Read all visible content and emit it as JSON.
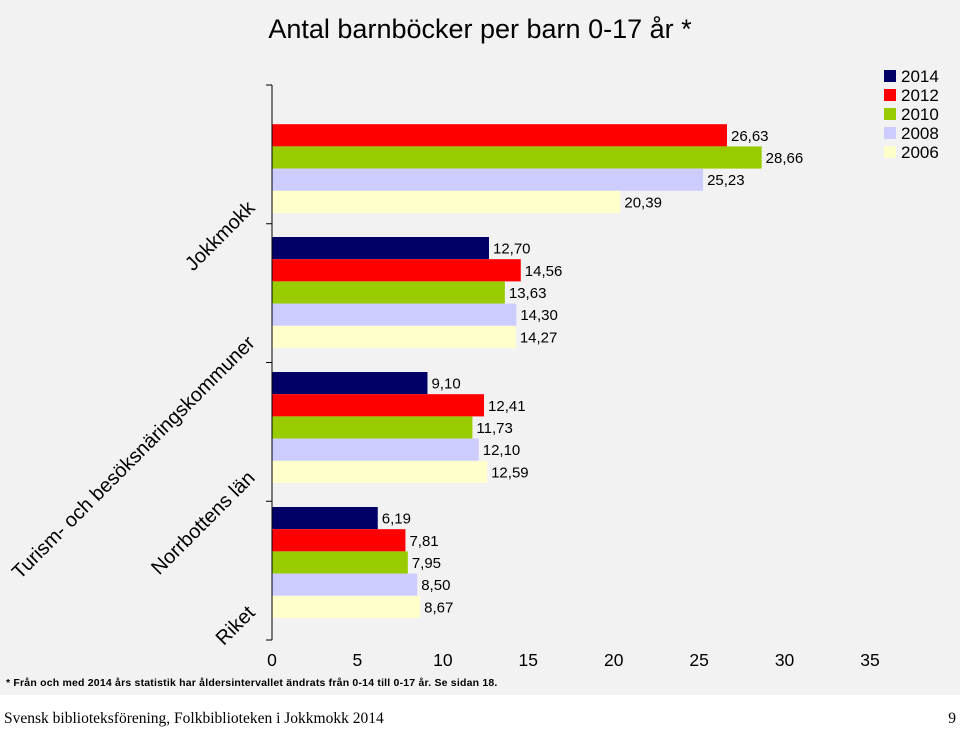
{
  "chart_data": {
    "type": "bar",
    "orientation": "horizontal",
    "title": "Antal barnböcker per barn 0-17 år *",
    "categories": [
      "Jokkmokk",
      "Turism- och besöksnäringskommuner",
      "Norrbottens län",
      "Riket"
    ],
    "series": [
      {
        "name": "2014",
        "color": "#000066",
        "values": [
          null,
          12.7,
          9.1,
          6.19
        ],
        "labels": [
          "",
          "12,70",
          "9,10",
          "6,19"
        ]
      },
      {
        "name": "2012",
        "color": "#ff0000",
        "values": [
          26.63,
          14.56,
          12.41,
          7.81
        ],
        "labels": [
          "26,63",
          "14,56",
          "12,41",
          "7,81"
        ]
      },
      {
        "name": "2010",
        "color": "#99cc00",
        "values": [
          28.66,
          13.63,
          11.73,
          7.95
        ],
        "labels": [
          "28,66",
          "13,63",
          "11,73",
          "7,95"
        ]
      },
      {
        "name": "2008",
        "color": "#ccccff",
        "values": [
          25.23,
          14.3,
          12.1,
          8.5
        ],
        "labels": [
          "25,23",
          "14,30",
          "12,10",
          "8,50"
        ]
      },
      {
        "name": "2006",
        "color": "#ffffcc",
        "values": [
          20.39,
          14.27,
          12.59,
          8.67
        ],
        "labels": [
          "20,39",
          "14,27",
          "12,59",
          "8,67"
        ]
      }
    ],
    "xlim": [
      0,
      35
    ],
    "xticks": [
      "0",
      "5",
      "10",
      "15",
      "20",
      "25",
      "30",
      "35"
    ],
    "legend_position": "top-right",
    "grid": false
  },
  "footnote": "* Från och med 2014 års statistik har åldersintervallet ändrats från 0-14 till 0-17 år. Se sidan 18.",
  "footer": {
    "left": "Svensk biblioteksförening, Folkbiblioteken i Jokkmokk 2014",
    "page": "9"
  }
}
